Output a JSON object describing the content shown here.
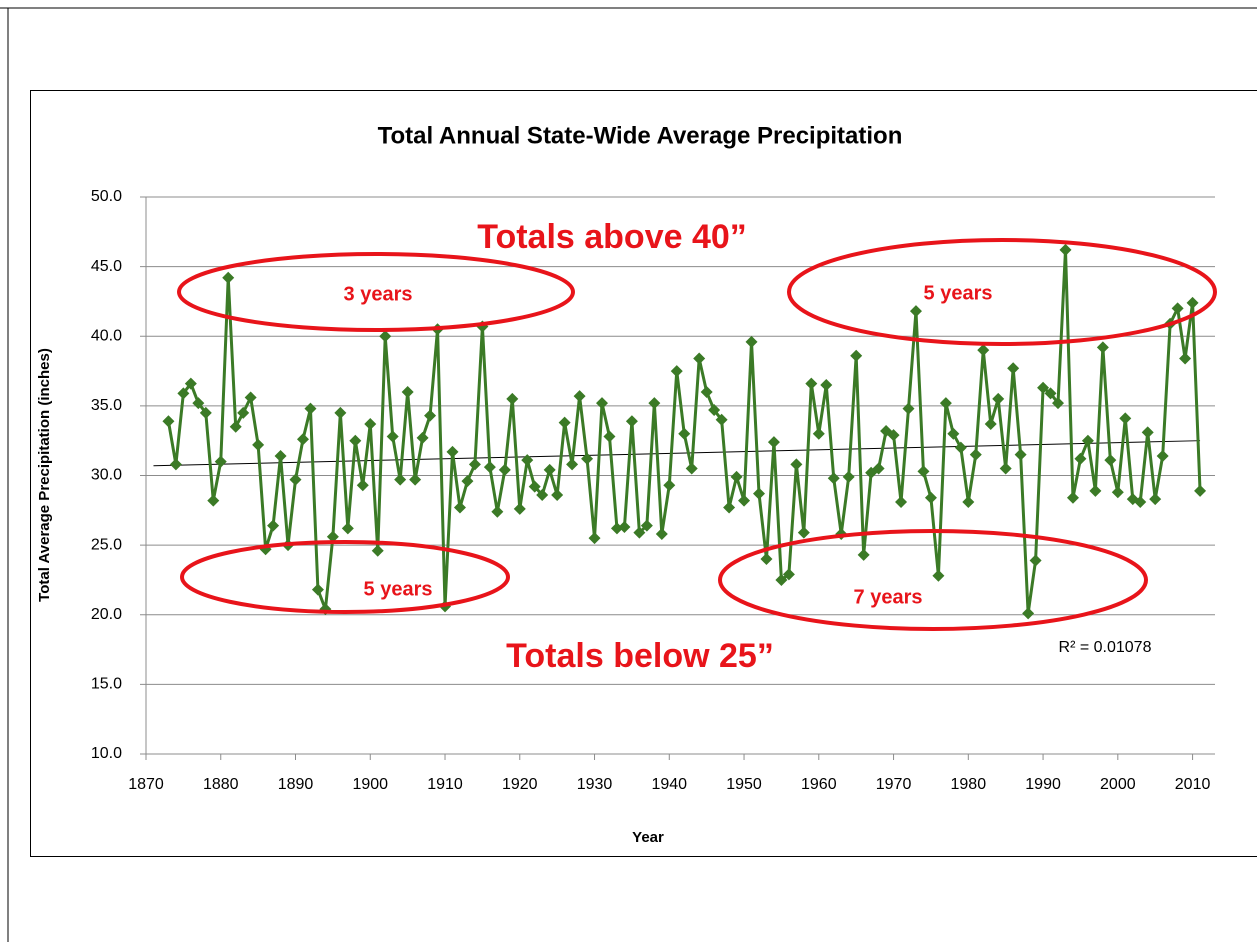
{
  "chart_data": {
    "type": "line",
    "title": "Total Annual State-Wide Average Precipitation",
    "x_label": "Year",
    "y_label": "Total Average Precipitation (inches)",
    "x": [
      1873,
      1874,
      1875,
      1876,
      1877,
      1878,
      1879,
      1880,
      1881,
      1882,
      1883,
      1884,
      1885,
      1886,
      1887,
      1888,
      1889,
      1890,
      1891,
      1892,
      1893,
      1894,
      1895,
      1896,
      1897,
      1898,
      1899,
      1900,
      1901,
      1902,
      1903,
      1904,
      1905,
      1906,
      1907,
      1908,
      1909,
      1910,
      1911,
      1912,
      1913,
      1914,
      1915,
      1916,
      1917,
      1918,
      1919,
      1920,
      1921,
      1922,
      1923,
      1924,
      1925,
      1926,
      1927,
      1928,
      1929,
      1930,
      1931,
      1932,
      1933,
      1934,
      1935,
      1936,
      1937,
      1938,
      1939,
      1940,
      1941,
      1942,
      1943,
      1944,
      1945,
      1946,
      1947,
      1948,
      1949,
      1950,
      1951,
      1952,
      1953,
      1954,
      1955,
      1956,
      1957,
      1958,
      1959,
      1960,
      1961,
      1962,
      1963,
      1964,
      1965,
      1966,
      1967,
      1968,
      1969,
      1970,
      1971,
      1972,
      1973,
      1974,
      1975,
      1976,
      1977,
      1978,
      1979,
      1980,
      1981,
      1982,
      1983,
      1984,
      1985,
      1986,
      1987,
      1988,
      1989,
      1990,
      1991,
      1992,
      1993,
      1994,
      1995,
      1996,
      1997,
      1998,
      1999,
      2000,
      2001,
      2002,
      2003,
      2004,
      2005,
      2006,
      2007,
      2008,
      2009,
      2010,
      2011
    ],
    "series": [
      {
        "color": "#3b7a26",
        "values": [
          33.9,
          30.8,
          35.9,
          36.6,
          35.2,
          34.5,
          28.2,
          31.0,
          44.2,
          33.5,
          34.5,
          35.6,
          32.2,
          24.7,
          26.4,
          31.4,
          25.0,
          29.7,
          32.6,
          34.8,
          21.8,
          20.4,
          25.6,
          34.5,
          26.2,
          32.5,
          29.3,
          33.7,
          24.6,
          40.0,
          32.8,
          29.7,
          36.0,
          29.7,
          32.7,
          34.3,
          40.5,
          20.6,
          31.7,
          27.7,
          29.6,
          30.8,
          40.7,
          30.6,
          27.4,
          30.4,
          35.5,
          27.6,
          31.1,
          29.2,
          28.6,
          30.4,
          28.6,
          33.8,
          30.8,
          35.7,
          31.2,
          25.5,
          35.2,
          32.8,
          26.2,
          26.3,
          33.9,
          25.9,
          26.4,
          35.2,
          25.8,
          29.3,
          37.5,
          33.0,
          30.5,
          38.4,
          36.0,
          34.7,
          34.0,
          27.7,
          29.9,
          28.2,
          39.6,
          28.7,
          24.0,
          32.4,
          22.5,
          22.9,
          30.8,
          25.9,
          36.6,
          33.0,
          36.5,
          29.8,
          25.8,
          29.9,
          38.6,
          24.3,
          30.2,
          30.5,
          33.2,
          32.9,
          28.1,
          34.8,
          41.8,
          30.3,
          28.4,
          22.8,
          35.2,
          33.0,
          32.0,
          28.1,
          31.5,
          39.0,
          33.7,
          35.5,
          30.5,
          37.7,
          31.5,
          20.1,
          23.9,
          36.3,
          35.9,
          35.2,
          46.2,
          28.4,
          31.2,
          32.5,
          28.9,
          39.2,
          31.1,
          28.8,
          34.1,
          28.3,
          28.1,
          33.1,
          28.3,
          31.4,
          40.9,
          42.0,
          38.4,
          42.4,
          28.9
        ]
      }
    ],
    "trendline": {
      "color": "#000000",
      "x": [
        1871,
        2011
      ],
      "values": [
        30.7,
        32.5
      ],
      "label": "R² = 0.01078"
    },
    "annotations": [
      "Totals above 40”",
      "Totals below 25”",
      "3 years",
      "5 years",
      "5 years",
      "7 years"
    ],
    "annotation_color": "#e8141a",
    "xlim": [
      1870,
      2013
    ],
    "xticks": [
      1870,
      1880,
      1890,
      1900,
      1910,
      1920,
      1930,
      1940,
      1950,
      1960,
      1970,
      1980,
      1990,
      2000,
      2010
    ],
    "ylim": [
      10,
      50
    ],
    "yticks": [
      {
        "value": 10,
        "label": "10.0"
      },
      {
        "value": 15,
        "label": "15.0"
      },
      {
        "value": 20,
        "label": "20.0"
      },
      {
        "value": 25,
        "label": "25.0"
      },
      {
        "value": 30,
        "label": "30.0"
      },
      {
        "value": 35,
        "label": "35.0"
      },
      {
        "value": 40,
        "label": "40.0"
      },
      {
        "value": 45,
        "label": "45.0"
      },
      {
        "value": 50,
        "label": "50.0"
      }
    ],
    "grid": true
  }
}
